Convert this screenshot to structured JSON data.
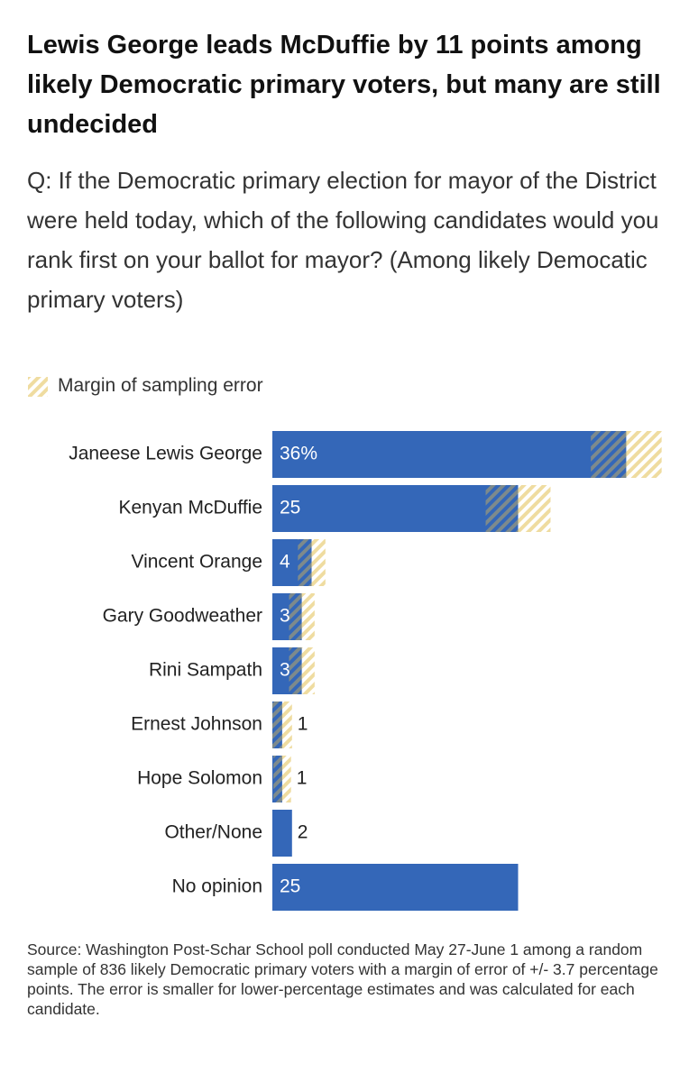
{
  "chart_data": {
    "type": "bar",
    "orientation": "horizontal",
    "title": "Lewis George leads McDuffie by 11 points among likely Democratic primary voters, but many are still undecided",
    "subtitle": "Q: If the Democratic primary election for mayor of the District were held today, which of the following candidates would you rank first on your ballot for mayor? (Among likely Democatic primary voters)",
    "error_name": "Margin of sampling error",
    "categories": [
      "Janeese Lewis George",
      "Kenyan McDuffie",
      "Vincent Orange",
      "Gary Goodweather",
      "Rini Sampath",
      "Ernest Johnson",
      "Hope Solomon",
      "Other/None",
      "No opinion"
    ],
    "values": [
      36,
      25,
      4,
      3,
      3,
      1,
      1,
      2,
      25
    ],
    "value_labels": [
      "36%",
      "25",
      "4",
      "3",
      "3",
      "1",
      "1",
      "2",
      "25"
    ],
    "errors": [
      3.6,
      3.3,
      1.4,
      1.3,
      1.3,
      1.0,
      0.9,
      null,
      null
    ],
    "color": "#3467b8",
    "source": "Source: Washington Post-Schar School poll conducted May 27-June 1 among a random sample of 836 likely Democratic primary voters with a margin of error of +/- 3.7 percentage points. The error is smaller for lower-percentage estimates and was calculated for each candidate."
  }
}
